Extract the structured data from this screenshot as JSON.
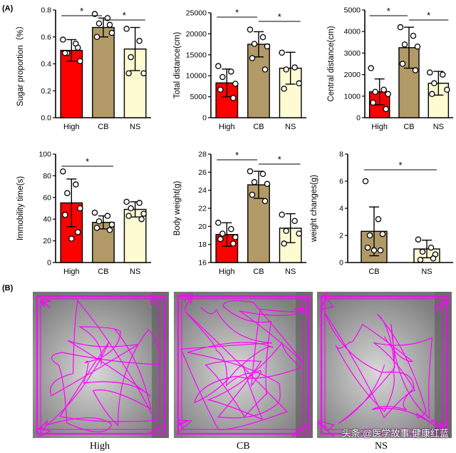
{
  "panel_a_label": "(A)",
  "panel_b_label": "(B)",
  "sig_symbol": "*",
  "colors": {
    "red": "#ff0000",
    "brown": "#b19a68",
    "cream": "#fefad2",
    "track": "#ff00ff",
    "box_bg": "#8c8c8c"
  },
  "chart_data": [
    {
      "type": "bar",
      "categories": [
        "High",
        "CB",
        "NS"
      ],
      "ylabel": "Sugar proportion（%）",
      "ylim": [
        0,
        0.8
      ],
      "yticks": [
        0,
        0.2,
        0.4,
        0.6,
        0.8
      ],
      "yticklabels": [
        "0.0",
        "0.2",
        "0.4",
        "0.6",
        "0.8"
      ],
      "values": [
        0.5,
        0.67,
        0.51
      ],
      "errors": [
        0.08,
        0.07,
        0.16
      ],
      "points": [
        [
          0.58,
          0.55,
          0.48,
          0.42,
          0.48,
          0.52
        ],
        [
          0.77,
          0.74,
          0.7,
          0.63,
          0.6,
          0.69
        ],
        [
          0.66,
          0.57,
          0.45,
          0.33,
          0.33
        ]
      ],
      "significance": [
        [
          0,
          1
        ],
        [
          1,
          2
        ]
      ]
    },
    {
      "type": "bar",
      "categories": [
        "High",
        "CB",
        "NS"
      ],
      "ylabel": "Total distance(cm)",
      "ylim": [
        0,
        25000
      ],
      "yticks": [
        0,
        5000,
        10000,
        15000,
        20000,
        25000
      ],
      "yticklabels": [
        "0",
        "5000",
        "10000",
        "15000",
        "20000",
        "25000"
      ],
      "values": [
        8300,
        17500,
        11800
      ],
      "errors": [
        3300,
        3000,
        3800
      ],
      "points": [
        [
          12300,
          11000,
          9700,
          8100,
          6700,
          4700
        ],
        [
          21000,
          19200,
          17600,
          17000,
          14200,
          11500
        ],
        [
          15500,
          12000,
          11500,
          8200,
          6900
        ]
      ],
      "significance": [
        [
          0,
          1
        ],
        [
          1,
          2
        ]
      ]
    },
    {
      "type": "bar",
      "categories": [
        "High",
        "CB",
        "NS"
      ],
      "ylabel": "Central distance(cm)",
      "ylim": [
        0,
        5000
      ],
      "yticks": [
        0,
        1000,
        2000,
        3000,
        4000,
        5000
      ],
      "yticklabels": [
        "0",
        "1000",
        "2000",
        "3000",
        "4000",
        "5000"
      ],
      "values": [
        1200,
        3250,
        1600
      ],
      "errors": [
        600,
        950,
        550
      ],
      "points": [
        [
          2300,
          1300,
          1200,
          1100,
          700,
          400
        ],
        [
          4200,
          3800,
          3400,
          3300,
          2500,
          2200
        ],
        [
          2100,
          2000,
          1600,
          1300,
          1100
        ]
      ],
      "significance": [
        [
          0,
          1
        ],
        [
          1,
          2
        ]
      ]
    },
    {
      "type": "bar",
      "categories": [
        "High",
        "CB",
        "NS"
      ],
      "ylabel": "Immobility time(s)",
      "ylim": [
        0,
        100
      ],
      "yticks": [
        0,
        20,
        40,
        60,
        80,
        100
      ],
      "yticklabels": [
        "0",
        "20",
        "40",
        "60",
        "80",
        "100"
      ],
      "values": [
        55,
        37,
        49
      ],
      "errors": [
        22,
        6,
        7
      ],
      "points": [
        [
          84,
          72,
          64,
          50,
          44,
          28,
          22
        ],
        [
          46,
          43,
          38,
          35,
          32,
          30
        ],
        [
          56,
          55,
          50,
          45,
          43,
          40
        ]
      ],
      "significance": [
        [
          0,
          1
        ]
      ]
    },
    {
      "type": "bar",
      "categories": [
        "High",
        "CB",
        "NS"
      ],
      "ylabel": "Body weight(g)",
      "ylim": [
        16,
        28
      ],
      "yticks": [
        16,
        18,
        20,
        22,
        24,
        26,
        28
      ],
      "yticklabels": [
        "16",
        "18",
        "20",
        "22",
        "24",
        "26",
        "28"
      ],
      "values": [
        19.1,
        24.6,
        19.8
      ],
      "errors": [
        1.3,
        1.5,
        1.6
      ],
      "points": [
        [
          20.4,
          19.7,
          19.2,
          18.8,
          18.6,
          18.1
        ],
        [
          26.1,
          25.8,
          24.9,
          24.7,
          23.5,
          22.8
        ],
        [
          21.3,
          20.6,
          19.5,
          19.2,
          18.1
        ]
      ],
      "significance": [
        [
          0,
          1
        ],
        [
          1,
          2
        ]
      ]
    },
    {
      "type": "bar",
      "categories": [
        "CB",
        "NS"
      ],
      "ylabel": "weight changes(g)",
      "ylim": [
        0,
        8
      ],
      "yticks": [
        0,
        2,
        4,
        6,
        8
      ],
      "yticklabels": [
        "0",
        "2",
        "4",
        "6",
        "8"
      ],
      "values": [
        2.3,
        1.0
      ],
      "errors": [
        1.8,
        0.65
      ],
      "points": [
        [
          6.0,
          3.2,
          2.0,
          2.1,
          1.1,
          0.9,
          0.9
        ],
        [
          1.7,
          1.1,
          0.8,
          0.6,
          0.2,
          0.3
        ]
      ],
      "significance": [
        [
          0,
          1
        ]
      ]
    }
  ],
  "track_labels": [
    "High",
    "CB",
    "NS"
  ],
  "watermark": "头条 @医学故事.健康红蓝"
}
